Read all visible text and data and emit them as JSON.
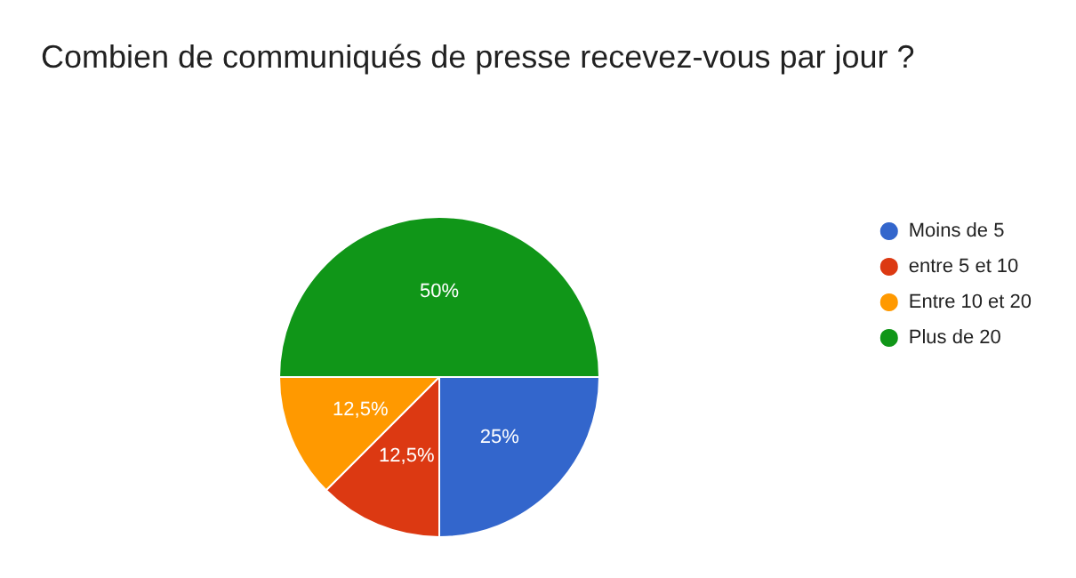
{
  "chart_data": {
    "type": "pie",
    "title": "Combien de communiqués de presse recevez-vous par jour ?",
    "categories": [
      "Moins de 5",
      "entre 5 et 10",
      "Entre 10 et 20",
      "Plus de 20"
    ],
    "values": [
      25,
      12.5,
      12.5,
      50
    ],
    "value_labels": [
      "25%",
      "12,5%",
      "12,5%",
      "50%"
    ],
    "colors": [
      "#3366cc",
      "#dc3912",
      "#ff9900",
      "#109618"
    ],
    "legend": "right"
  }
}
